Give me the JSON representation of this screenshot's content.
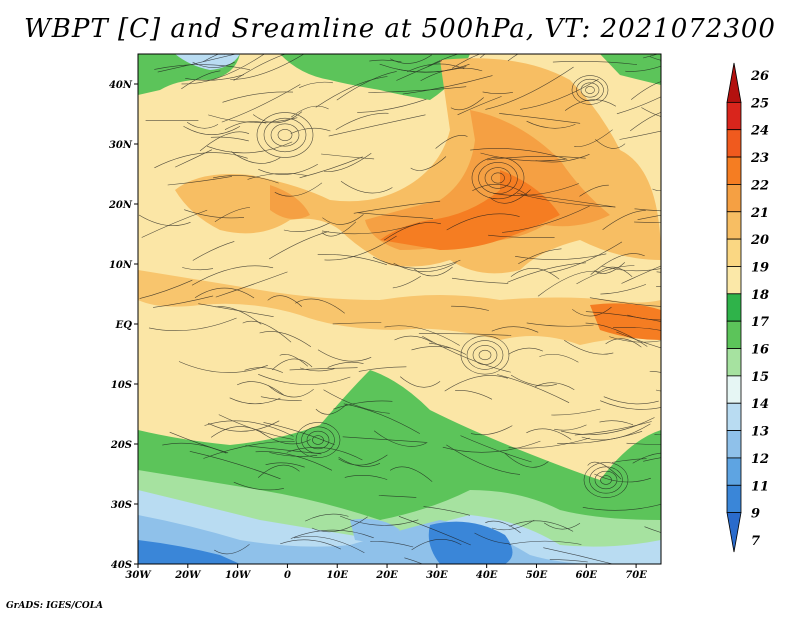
{
  "title": "WBPT [C] and Sreamline at 500hPa, VT: 2021072300",
  "credit": "GrADS: IGES/COLA",
  "map": {
    "lon_range": [
      -30,
      75
    ],
    "lat_range": [
      -40,
      45
    ],
    "x_ticks": [
      "30W",
      "20W",
      "10W",
      "0",
      "10E",
      "20E",
      "30E",
      "40E",
      "50E",
      "60E",
      "70E"
    ],
    "y_ticks": [
      "40N",
      "30N",
      "20N",
      "10N",
      "EQ",
      "10S",
      "20S",
      "30S",
      "40S"
    ]
  },
  "colorbar": {
    "labels": [
      "26",
      "25",
      "24",
      "23",
      "22",
      "21",
      "20",
      "19",
      "18",
      "17",
      "16",
      "15",
      "14",
      "13",
      "12",
      "11",
      "9",
      "7"
    ],
    "colors": [
      "#b3110f",
      "#d9251c",
      "#f05a1e",
      "#f57d22",
      "#f5a043",
      "#f7be63",
      "#fad783",
      "#fbe8a8",
      "#2fb34a",
      "#5cc45a",
      "#a6e2a0",
      "#e6f6f4",
      "#b9dcf2",
      "#8fc1ea",
      "#5ea4e2",
      "#3a86d8",
      "#2a6bcc"
    ]
  }
}
